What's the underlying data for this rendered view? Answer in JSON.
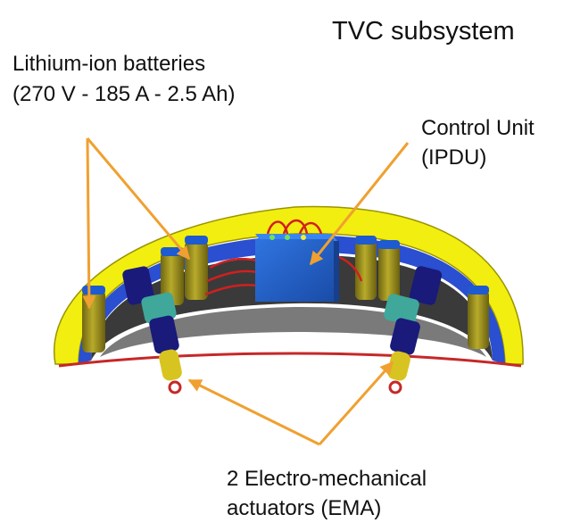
{
  "diagram": {
    "title": "TVC subsystem",
    "batteries": {
      "line1": "Lithium-ion batteries",
      "line2": "(270 V - 185 A - 2.5 Ah)"
    },
    "control_unit": {
      "line1": "Control Unit",
      "line2": "(IPDU)"
    },
    "actuators": {
      "line1": "2 Electro-mechanical",
      "line2": "actuators (EMA)"
    }
  },
  "colors": {
    "ring_yellow": "#f2ee10",
    "ring_blue": "#2a4fd0",
    "ring_dark": "#2b2b2b",
    "battery_olive": "#a79a1f",
    "ipdu_blue": "#1f5fc8",
    "arrow_orange": "#f0a030",
    "cable_red": "#d02020",
    "actuator_navy": "#1a1a7a",
    "actuator_teal": "#3fa89a"
  }
}
